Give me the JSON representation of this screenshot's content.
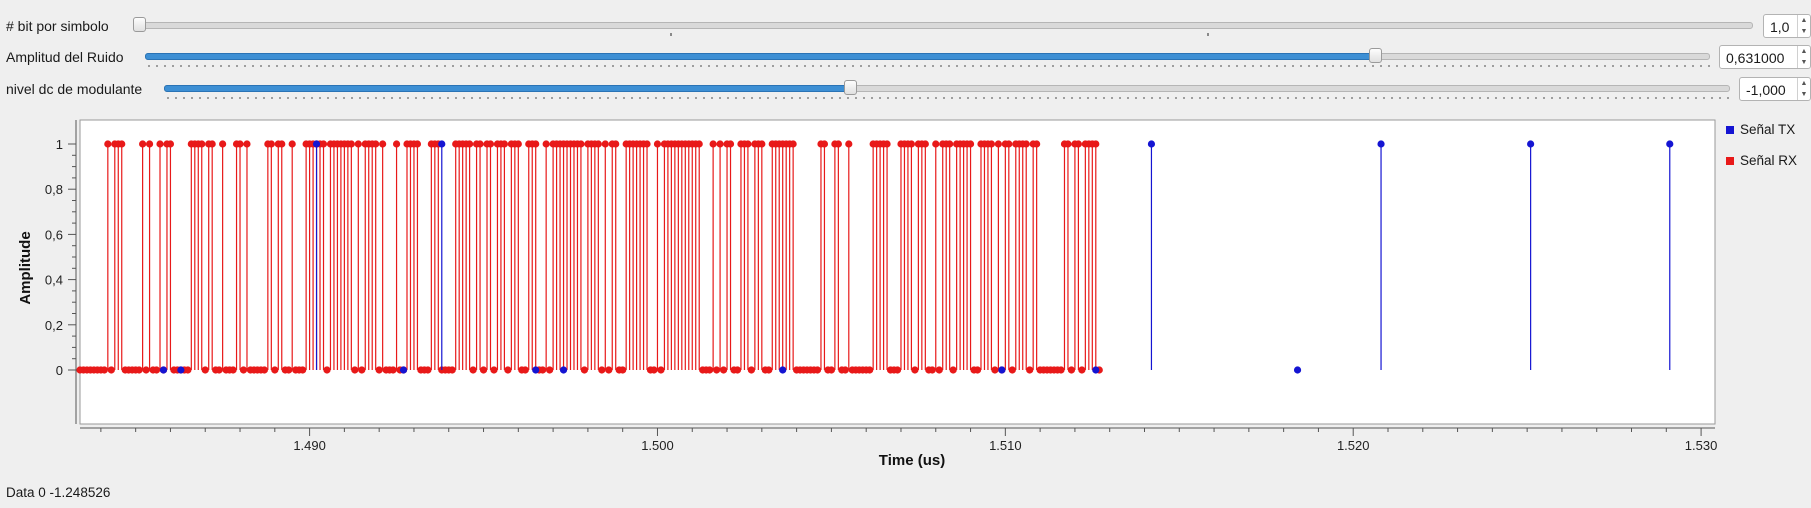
{
  "controls": {
    "bits": {
      "label": "# bit por simbolo",
      "value": "1,0",
      "level": 0.0
    },
    "noise": {
      "label": "Amplitud del Ruido",
      "value": "0,631000",
      "level": 0.786
    },
    "dc": {
      "label": "nivel dc de modulante",
      "value": "-1,000",
      "level": 0.438
    }
  },
  "legend": {
    "tx": "Señal TX",
    "rx": "Señal RX"
  },
  "colors": {
    "tx": "#1414d2",
    "rx": "#e81919",
    "accent": "#3d8fd4"
  },
  "status": {
    "label": "Data 0",
    "value": "-1.248526"
  },
  "chart_data": {
    "type": "stem",
    "xlabel": "Time (us)",
    "ylabel": "Amplitude",
    "xlim": [
      1.4834,
      1.5304
    ],
    "ylim": [
      -0.05,
      1.05
    ],
    "x_ticks": [
      "1.490",
      "1.500",
      "1.510",
      "1.520",
      "1.530"
    ],
    "x_tick_values": [
      1.49,
      1.5,
      1.51,
      1.52,
      1.53
    ],
    "y_ticks": [
      "0",
      "0,2",
      "0,4",
      "0,6",
      "0,8",
      "1"
    ],
    "y_tick_values": [
      0,
      0.2,
      0.4,
      0.6,
      0.8,
      1.0
    ],
    "sample_spacing": 0.0001,
    "x_start": 1.4834,
    "series": [
      {
        "name": "Señal TX",
        "color": "#1414d2",
        "ones_at": [
          1.4902,
          1.4938,
          1.5142,
          1.5208,
          1.5251,
          1.5291
        ],
        "zeros_at": [
          1.4858,
          1.4863,
          1.4927,
          1.4965,
          1.4973,
          1.5036,
          1.5099,
          1.5126,
          1.5184
        ]
      },
      {
        "name": "Señal RX",
        "color": "#e81919",
        "ones": [
          0,
          0,
          0,
          0,
          0,
          0,
          0,
          0,
          1,
          0,
          1,
          1,
          1,
          0,
          0,
          0,
          0,
          0,
          1,
          0,
          1,
          0,
          0,
          1,
          0,
          1,
          1,
          0,
          0,
          0,
          0,
          0,
          1,
          1,
          1,
          1,
          0,
          1,
          1,
          0,
          0,
          1,
          0,
          0,
          0,
          1,
          1,
          0,
          1,
          0,
          0,
          0,
          0,
          0,
          1,
          1,
          0,
          1,
          1,
          0,
          0,
          1,
          0,
          0,
          0,
          1,
          1,
          1,
          1,
          1,
          1,
          0,
          1,
          1,
          1,
          1,
          1,
          1,
          1,
          0,
          1,
          0,
          1,
          1,
          1,
          1,
          0,
          1,
          0,
          0,
          0,
          1,
          0,
          0,
          1,
          1,
          1,
          1,
          0,
          0,
          0,
          1,
          1,
          1,
          0,
          0,
          0,
          0,
          1,
          1,
          1,
          1,
          1,
          0,
          1,
          1,
          0,
          1,
          1,
          0,
          1,
          1,
          1,
          0,
          1,
          1,
          1,
          0,
          0,
          1,
          1,
          1,
          0,
          0,
          1,
          0,
          1,
          1,
          1,
          1,
          1,
          1,
          1,
          1,
          1,
          0,
          1,
          1,
          1,
          1,
          0,
          1,
          0,
          1,
          1,
          0,
          0,
          1,
          1,
          1,
          1,
          1,
          1,
          1,
          0,
          0,
          1,
          0,
          1,
          1,
          1,
          1,
          1,
          1,
          1,
          1,
          1,
          1,
          1,
          0,
          0,
          0,
          1,
          0,
          1,
          0,
          1,
          1,
          0,
          0,
          1,
          1,
          1,
          0,
          1,
          1,
          1,
          0,
          0,
          1,
          1,
          1,
          1,
          1,
          1,
          1,
          0,
          0,
          0,
          0,
          0,
          0,
          0,
          1,
          1,
          0,
          0,
          1,
          1,
          0,
          0,
          1,
          0,
          0,
          0,
          0,
          0,
          0,
          1,
          1,
          1,
          1,
          1,
          0,
          0,
          0,
          1,
          1,
          1,
          1,
          0,
          1,
          1,
          1,
          0,
          0,
          1,
          0,
          1,
          1,
          1,
          0,
          1,
          1,
          1,
          1,
          1,
          0,
          0,
          1,
          1,
          1,
          1,
          0,
          1,
          0,
          1,
          1,
          0,
          1,
          1,
          1,
          1,
          0,
          1,
          1,
          0,
          0,
          0,
          0,
          0,
          0,
          0,
          1,
          1,
          0,
          1,
          1,
          0,
          1,
          1,
          1,
          1,
          0
        ]
      }
    ]
  }
}
